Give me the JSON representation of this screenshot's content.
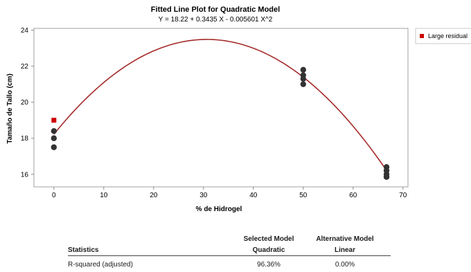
{
  "chart_data": {
    "type": "scatter",
    "title": "Fitted Line Plot for Quadratic Model",
    "subtitle": "Y = 18.22 + 0.3435 X - 0.005601 X^2",
    "xlabel": "% de Hidrogel",
    "ylabel": "Tamaño de Tallo (cm)",
    "xlim": [
      -4,
      71
    ],
    "ylim": [
      15.3,
      24.1
    ],
    "xticks": [
      0,
      10,
      20,
      30,
      40,
      50,
      60,
      70
    ],
    "yticks": [
      16,
      18,
      20,
      22,
      24
    ],
    "points": [
      {
        "x": 0,
        "y": 18.4
      },
      {
        "x": 0,
        "y": 18.0
      },
      {
        "x": 0,
        "y": 17.5
      },
      {
        "x": 50,
        "y": 21.8
      },
      {
        "x": 50,
        "y": 21.5
      },
      {
        "x": 50,
        "y": 21.3
      },
      {
        "x": 50,
        "y": 21.0
      },
      {
        "x": 66.7,
        "y": 16.4
      },
      {
        "x": 66.7,
        "y": 16.2
      },
      {
        "x": 66.7,
        "y": 16.0
      },
      {
        "x": 66.7,
        "y": 15.85
      }
    ],
    "large_residual_points": [
      {
        "x": 0,
        "y": 19.0
      }
    ],
    "fit": {
      "b0": 18.22,
      "b1": 0.3435,
      "b2": -0.005601,
      "x_range": [
        0,
        66.7
      ]
    },
    "legend": {
      "label": "Large residual",
      "position": "top-right"
    },
    "colors": {
      "points": "#333333",
      "fit_line": "#a52a2a",
      "large_residual": "#cc0000"
    }
  },
  "stats": {
    "header_col1": "Statistics",
    "header_col2_top": "Selected Model",
    "header_col2_bottom": "Quadratic",
    "header_col3_top": "Alternative Model",
    "header_col3_bottom": "Linear",
    "row_label": "R-squared (adjusted)",
    "row_col2": "96.36%",
    "row_col3": "0.00%"
  }
}
